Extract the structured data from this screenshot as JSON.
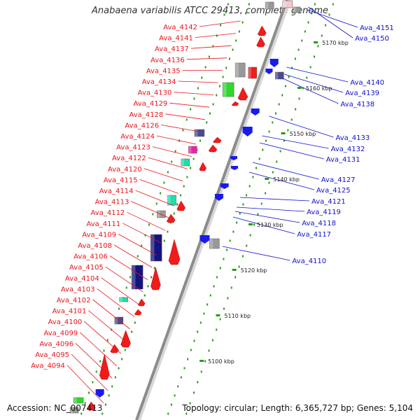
{
  "title": "Anabaena variabilis ATCC 29413, complete genome",
  "accession_text": "Accession: NC_007413",
  "summary_text": "Topology: circular; Length: 6,365,727 bp; Genes: 5,104",
  "colors": {
    "backbone": "#8c8c8c",
    "left_label": "#e8141a",
    "right_label": "#1010d0",
    "ticks": "#2a9a1a",
    "red_feature": "#f01c1c",
    "blue_feature": "#1a1aee",
    "navy_feature": "#141480",
    "green_feature": "#2ed82e",
    "gray_feature": "#999999",
    "purple_feature": "#4a4a90",
    "pink_feature": "#ee22aa",
    "cyan_feature": "#22ddaa"
  },
  "scale_labels": [
    {
      "kbp": 5170,
      "text": "5170 kbp"
    },
    {
      "kbp": 5160,
      "text": "5160 kbp"
    },
    {
      "kbp": 5150,
      "text": "5150 kbp"
    },
    {
      "kbp": 5140,
      "text": "5140 kbp"
    },
    {
      "kbp": 5130,
      "text": "5130 kbp"
    },
    {
      "kbp": 5120,
      "text": "5120 kbp"
    },
    {
      "kbp": 5110,
      "text": "5110 kbp"
    },
    {
      "kbp": 5100,
      "text": "5100 kbp"
    }
  ],
  "left_genes": [
    "Ava_4142",
    "Ava_4141",
    "Ava_4137",
    "Ava_4136",
    "Ava_4135",
    "Ava_4134",
    "Ava_4130",
    "Ava_4129",
    "Ava_4128",
    "Ava_4126",
    "Ava_4124",
    "Ava_4123",
    "Ava_4122",
    "Ava_4120",
    "Ava_4115",
    "Ava_4114",
    "Ava_4113",
    "Ava_4112",
    "Ava_4111",
    "Ava_4109",
    "Ava_4108",
    "Ava_4106",
    "Ava_4105",
    "Ava_4104",
    "Ava_4103",
    "Ava_4102",
    "Ava_4101",
    "Ava_4100",
    "Ava_4099",
    "Ava_4096",
    "Ava_4095",
    "Ava_4094"
  ],
  "right_genes": [
    "Ava_4151",
    "Ava_4150",
    "Ava_4140",
    "Ava_4139",
    "Ava_4138",
    "Ava_4133",
    "Ava_4132",
    "Ava_4131",
    "Ava_4127",
    "Ava_4125",
    "Ava_4121",
    "Ava_4119",
    "Ava_4118",
    "Ava_4117",
    "Ava_4110"
  ]
}
